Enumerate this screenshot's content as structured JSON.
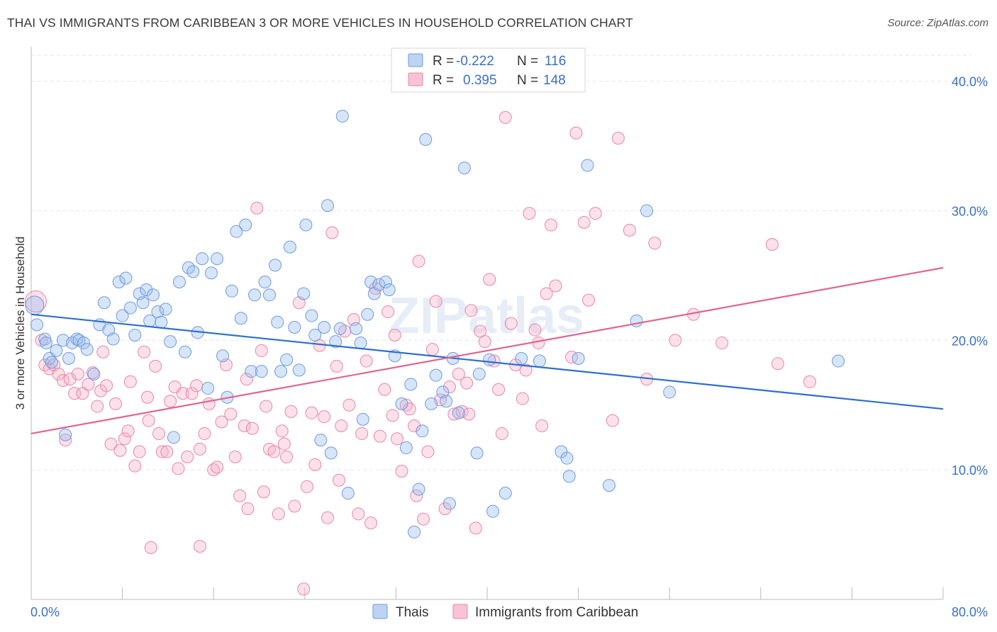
{
  "title": "THAI VS IMMIGRANTS FROM CARIBBEAN 3 OR MORE VEHICLES IN HOUSEHOLD CORRELATION CHART",
  "source": "Source: ZipAtlas.com",
  "watermark": "ZIPatlas",
  "colors": {
    "blue": "#5b8fdd",
    "blue_line": "#2e6fcf",
    "pink": "#ec7fa3",
    "pink_line": "#e0658f",
    "axis_text": "#3a6fc8"
  },
  "stats": [
    {
      "series": "Thais",
      "r_label": "R =",
      "r": "-0.222",
      "n_label": "N =",
      "n": "116",
      "color": "blue"
    },
    {
      "series": "Immigrants from Caribbean",
      "r_label": "R =",
      "r": "0.395",
      "n_label": "N =",
      "n": "148",
      "color": "pink"
    }
  ],
  "chart_data": {
    "type": "scatter",
    "title": "THAI VS IMMIGRANTS FROM CARIBBEAN 3 OR MORE VEHICLES IN HOUSEHOLD CORRELATION CHART",
    "xlabel": "",
    "ylabel": "3 or more Vehicles in Household",
    "xlim": [
      0,
      80
    ],
    "ylim": [
      0,
      42
    ],
    "x_tick_labels": [
      {
        "value": 0,
        "label": "0.0%"
      },
      {
        "value": 80,
        "label": "80.0%"
      }
    ],
    "y_tick_labels": [
      {
        "value": 10,
        "label": "10.0%"
      },
      {
        "value": 20,
        "label": "20.0%"
      },
      {
        "value": 30,
        "label": "30.0%"
      },
      {
        "value": 40,
        "label": "40.0%"
      }
    ],
    "grid": true,
    "legend_position": "bottom",
    "series": [
      {
        "name": "Thais",
        "color": "blue",
        "trend": [
          [
            0,
            22.0
          ],
          [
            80,
            14.7
          ]
        ],
        "points": [
          [
            0.3,
            22.7
          ],
          [
            0.5,
            21.2
          ],
          [
            1.2,
            20.1
          ],
          [
            1.3,
            19.8
          ],
          [
            1.6,
            18.6
          ],
          [
            1.8,
            18.3
          ],
          [
            2.2,
            19.2
          ],
          [
            2.8,
            20.0
          ],
          [
            3.0,
            12.7
          ],
          [
            3.3,
            18.6
          ],
          [
            3.6,
            19.8
          ],
          [
            4.0,
            20.1
          ],
          [
            4.2,
            20.0
          ],
          [
            4.6,
            19.8
          ],
          [
            4.9,
            19.3
          ],
          [
            5.5,
            17.4
          ],
          [
            6.0,
            21.2
          ],
          [
            6.4,
            22.9
          ],
          [
            6.8,
            20.8
          ],
          [
            7.2,
            20.1
          ],
          [
            7.7,
            24.5
          ],
          [
            8.0,
            21.9
          ],
          [
            8.3,
            24.8
          ],
          [
            8.7,
            22.5
          ],
          [
            9.1,
            20.4
          ],
          [
            9.5,
            23.6
          ],
          [
            9.8,
            22.9
          ],
          [
            10.1,
            23.9
          ],
          [
            10.4,
            21.5
          ],
          [
            10.7,
            23.5
          ],
          [
            11.1,
            22.2
          ],
          [
            11.4,
            21.4
          ],
          [
            11.8,
            22.4
          ],
          [
            12.2,
            19.9
          ],
          [
            12.5,
            12.5
          ],
          [
            13.0,
            24.5
          ],
          [
            13.5,
            19.1
          ],
          [
            13.8,
            25.6
          ],
          [
            14.2,
            25.3
          ],
          [
            14.6,
            20.6
          ],
          [
            15.0,
            26.3
          ],
          [
            15.5,
            16.3
          ],
          [
            15.8,
            25.2
          ],
          [
            16.3,
            26.3
          ],
          [
            16.8,
            18.8
          ],
          [
            17.2,
            15.6
          ],
          [
            17.6,
            23.8
          ],
          [
            18.0,
            28.4
          ],
          [
            18.4,
            21.7
          ],
          [
            18.8,
            28.9
          ],
          [
            19.3,
            17.6
          ],
          [
            19.6,
            23.5
          ],
          [
            20.2,
            17.6
          ],
          [
            20.5,
            24.5
          ],
          [
            20.9,
            23.5
          ],
          [
            21.4,
            25.8
          ],
          [
            21.6,
            21.4
          ],
          [
            21.9,
            17.6
          ],
          [
            22.4,
            18.5
          ],
          [
            22.7,
            27.2
          ],
          [
            23.1,
            21.0
          ],
          [
            23.5,
            17.7
          ],
          [
            23.9,
            23.6
          ],
          [
            24.1,
            28.9
          ],
          [
            24.6,
            21.9
          ],
          [
            24.9,
            20.4
          ],
          [
            25.4,
            12.3
          ],
          [
            25.7,
            21.0
          ],
          [
            26.0,
            30.4
          ],
          [
            26.3,
            11.3
          ],
          [
            26.7,
            19.9
          ],
          [
            27.1,
            20.9
          ],
          [
            27.3,
            37.3
          ],
          [
            27.8,
            8.2
          ],
          [
            28.5,
            20.9
          ],
          [
            28.9,
            19.8
          ],
          [
            29.1,
            13.9
          ],
          [
            29.5,
            22.0
          ],
          [
            29.8,
            24.5
          ],
          [
            30.1,
            23.6
          ],
          [
            30.5,
            24.3
          ],
          [
            31.1,
            24.5
          ],
          [
            31.4,
            23.9
          ],
          [
            31.9,
            18.8
          ],
          [
            32.5,
            15.1
          ],
          [
            32.9,
            11.7
          ],
          [
            33.3,
            16.6
          ],
          [
            33.6,
            5.2
          ],
          [
            34.0,
            8.5
          ],
          [
            34.3,
            13.0
          ],
          [
            34.6,
            35.5
          ],
          [
            35.1,
            15.1
          ],
          [
            35.5,
            17.3
          ],
          [
            36.1,
            16.0
          ],
          [
            36.4,
            15.3
          ],
          [
            36.7,
            7.4
          ],
          [
            37.0,
            18.6
          ],
          [
            37.5,
            14.4
          ],
          [
            38.0,
            33.3
          ],
          [
            39.1,
            11.3
          ],
          [
            39.3,
            17.4
          ],
          [
            40.2,
            18.5
          ],
          [
            40.5,
            6.8
          ],
          [
            41.6,
            8.2
          ],
          [
            43.0,
            18.6
          ],
          [
            44.6,
            18.4
          ],
          [
            46.5,
            11.4
          ],
          [
            47.0,
            10.9
          ],
          [
            47.2,
            9.5
          ],
          [
            48.0,
            18.6
          ],
          [
            48.8,
            33.5
          ],
          [
            50.7,
            8.8
          ],
          [
            53.1,
            21.5
          ],
          [
            54.0,
            30.0
          ],
          [
            70.8,
            18.4
          ],
          [
            56.0,
            16.0
          ]
        ]
      },
      {
        "name": "Immigrants from Caribbean",
        "color": "pink",
        "trend": [
          [
            0,
            12.8
          ],
          [
            80,
            25.6
          ]
        ],
        "points": [
          [
            0.4,
            23.0
          ],
          [
            0.9,
            20.0
          ],
          [
            1.2,
            18.1
          ],
          [
            1.6,
            17.8
          ],
          [
            2.0,
            18.1
          ],
          [
            2.4,
            17.4
          ],
          [
            2.8,
            16.9
          ],
          [
            3.0,
            12.3
          ],
          [
            3.4,
            17.0
          ],
          [
            3.8,
            15.9
          ],
          [
            4.1,
            17.4
          ],
          [
            4.5,
            15.9
          ],
          [
            5.0,
            16.6
          ],
          [
            5.4,
            17.5
          ],
          [
            5.8,
            14.9
          ],
          [
            6.1,
            16.1
          ],
          [
            6.6,
            16.5
          ],
          [
            7.0,
            12.0
          ],
          [
            7.4,
            15.1
          ],
          [
            7.8,
            11.5
          ],
          [
            8.2,
            12.4
          ],
          [
            8.7,
            16.8
          ],
          [
            9.1,
            10.3
          ],
          [
            9.5,
            11.4
          ],
          [
            9.9,
            19.1
          ],
          [
            10.3,
            13.8
          ],
          [
            10.5,
            4.0
          ],
          [
            10.9,
            18.0
          ],
          [
            11.2,
            12.8
          ],
          [
            11.5,
            11.4
          ],
          [
            11.9,
            11.4
          ],
          [
            12.2,
            15.3
          ],
          [
            12.6,
            16.4
          ],
          [
            12.9,
            10.1
          ],
          [
            13.3,
            15.9
          ],
          [
            13.7,
            11.0
          ],
          [
            14.1,
            15.9
          ],
          [
            14.5,
            16.5
          ],
          [
            14.8,
            4.1
          ],
          [
            15.2,
            12.8
          ],
          [
            15.6,
            15.1
          ],
          [
            16.0,
            10.0
          ],
          [
            16.3,
            10.2
          ],
          [
            16.7,
            13.7
          ],
          [
            17.1,
            18.1
          ],
          [
            17.5,
            14.3
          ],
          [
            17.9,
            11.0
          ],
          [
            18.3,
            8.0
          ],
          [
            18.7,
            13.4
          ],
          [
            19.0,
            7.0
          ],
          [
            19.4,
            13.2
          ],
          [
            19.8,
            30.2
          ],
          [
            20.2,
            19.2
          ],
          [
            20.6,
            14.9
          ],
          [
            20.9,
            11.6
          ],
          [
            21.3,
            11.4
          ],
          [
            21.7,
            6.6
          ],
          [
            22.0,
            13.0
          ],
          [
            22.4,
            11.0
          ],
          [
            22.8,
            14.5
          ],
          [
            23.1,
            7.2
          ],
          [
            23.5,
            22.9
          ],
          [
            23.9,
            0.8
          ],
          [
            24.2,
            8.7
          ],
          [
            24.6,
            14.4
          ],
          [
            24.9,
            10.4
          ],
          [
            25.3,
            19.6
          ],
          [
            25.7,
            14.1
          ],
          [
            26.0,
            6.3
          ],
          [
            26.4,
            28.3
          ],
          [
            26.8,
            18.0
          ],
          [
            27.2,
            13.4
          ],
          [
            27.5,
            20.7
          ],
          [
            27.9,
            15.0
          ],
          [
            28.3,
            21.6
          ],
          [
            28.7,
            6.6
          ],
          [
            29.0,
            12.8
          ],
          [
            29.4,
            18.4
          ],
          [
            29.8,
            5.9
          ],
          [
            30.2,
            24.0
          ],
          [
            30.6,
            12.6
          ],
          [
            31.0,
            16.2
          ],
          [
            31.3,
            22.2
          ],
          [
            31.7,
            14.2
          ],
          [
            32.1,
            12.4
          ],
          [
            32.5,
            9.9
          ],
          [
            32.9,
            15.0
          ],
          [
            33.2,
            14.7
          ],
          [
            33.6,
            13.4
          ],
          [
            34.0,
            26.1
          ],
          [
            34.4,
            6.2
          ],
          [
            34.8,
            11.4
          ],
          [
            35.2,
            19.3
          ],
          [
            35.5,
            23.0
          ],
          [
            35.9,
            15.4
          ],
          [
            36.3,
            7.0
          ],
          [
            36.7,
            16.4
          ],
          [
            37.1,
            14.3
          ],
          [
            37.5,
            17.4
          ],
          [
            37.8,
            14.5
          ],
          [
            38.2,
            16.7
          ],
          [
            38.6,
            22.3
          ],
          [
            39.0,
            5.5
          ],
          [
            39.4,
            20.7
          ],
          [
            39.8,
            19.9
          ],
          [
            40.2,
            24.7
          ],
          [
            40.6,
            18.4
          ],
          [
            41.0,
            16.2
          ],
          [
            41.3,
            12.8
          ],
          [
            41.6,
            37.2
          ],
          [
            42.1,
            21.3
          ],
          [
            42.5,
            18.1
          ],
          [
            43.4,
            17.7
          ],
          [
            43.7,
            29.8
          ],
          [
            44.2,
            20.8
          ],
          [
            44.5,
            19.8
          ],
          [
            44.8,
            13.4
          ],
          [
            45.2,
            23.6
          ],
          [
            45.6,
            28.9
          ],
          [
            46.0,
            24.2
          ],
          [
            47.4,
            18.7
          ],
          [
            47.8,
            36.0
          ],
          [
            48.5,
            29.1
          ],
          [
            48.9,
            23.1
          ],
          [
            49.5,
            29.8
          ],
          [
            51.0,
            13.8
          ],
          [
            51.5,
            35.6
          ],
          [
            52.5,
            28.5
          ],
          [
            54.0,
            17.0
          ],
          [
            54.7,
            27.5
          ],
          [
            56.5,
            20.0
          ],
          [
            58.1,
            22.0
          ],
          [
            60.6,
            19.8
          ],
          [
            65.0,
            27.4
          ],
          [
            65.5,
            18.2
          ],
          [
            68.3,
            16.8
          ],
          [
            38.4,
            14.3
          ],
          [
            31.9,
            20.4
          ],
          [
            22.2,
            12.0
          ],
          [
            20.4,
            8.3
          ],
          [
            14.8,
            11.6
          ],
          [
            8.5,
            13.0
          ],
          [
            6.3,
            19.1
          ],
          [
            27.0,
            9.2
          ],
          [
            33.8,
            8.0
          ],
          [
            18.9,
            17.0
          ],
          [
            43.1,
            15.5
          ],
          [
            10.2,
            15.6
          ]
        ]
      }
    ]
  },
  "legend": [
    {
      "label": "Thais",
      "color": "blue"
    },
    {
      "label": "Immigrants from Caribbean",
      "color": "pink"
    }
  ]
}
